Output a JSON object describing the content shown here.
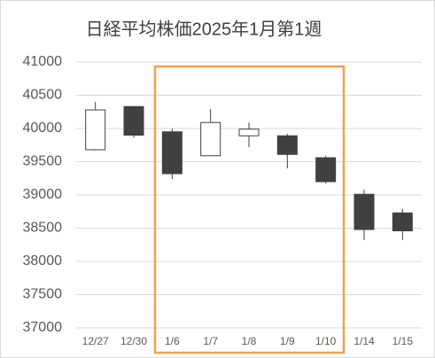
{
  "chart_data": {
    "type": "candlestick",
    "title": "日経平均株価2025年1月第1週",
    "categories": [
      "12/27",
      "12/30",
      "1/6",
      "1/7",
      "1/8",
      "1/9",
      "1/10",
      "1/14",
      "1/15"
    ],
    "open": [
      39680,
      40330,
      39950,
      39590,
      39890,
      39890,
      39560,
      39010,
      38730
    ],
    "high": [
      40400,
      40330,
      40000,
      40290,
      40090,
      39920,
      39590,
      39080,
      38790
    ],
    "low": [
      39670,
      39860,
      39240,
      39590,
      39720,
      39400,
      39170,
      38320,
      38320
    ],
    "close": [
      40280,
      39900,
      39320,
      40090,
      39990,
      39610,
      39200,
      38480,
      38460
    ],
    "up_color": "#ffffff",
    "down_color": "#404040",
    "edge_color": "#404040",
    "ylim": [
      37000,
      41000
    ],
    "yticks": [
      37000,
      37500,
      38000,
      38500,
      39000,
      39500,
      40000,
      40500,
      41000
    ],
    "grid": true
  }
}
